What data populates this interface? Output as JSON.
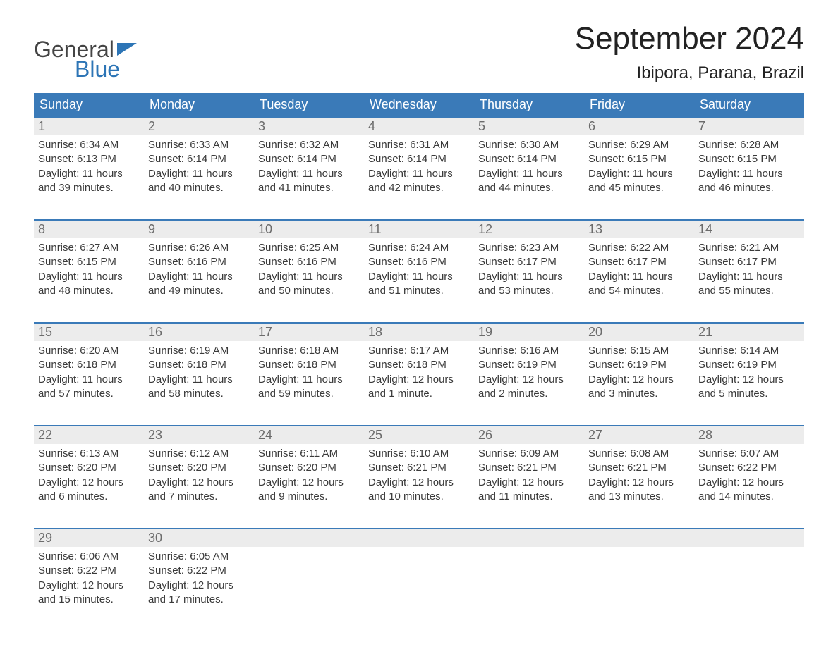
{
  "logo": {
    "line1": "General",
    "line2": "Blue"
  },
  "header": {
    "month_title": "September 2024",
    "location": "Ibipora, Parana, Brazil"
  },
  "colors": {
    "brand_blue": "#3a7ab8",
    "header_row_bg": "#3a7ab8",
    "header_row_text": "#ffffff",
    "dayrow_bg": "#ececec",
    "dayrow_border": "#3a7ab8",
    "daynum_text": "#6b6b6b",
    "body_text": "#3a3a3a",
    "page_bg": "#ffffff"
  },
  "fonts": {
    "month_title_pt": 44,
    "location_pt": 24,
    "weekday_pt": 18,
    "daynum_pt": 18,
    "cell_pt": 15,
    "logo_pt": 32
  },
  "weekdays": [
    "Sunday",
    "Monday",
    "Tuesday",
    "Wednesday",
    "Thursday",
    "Friday",
    "Saturday"
  ],
  "labels": {
    "sunrise": "Sunrise:",
    "sunset": "Sunset:",
    "daylight": "Daylight:"
  },
  "weeks": [
    [
      {
        "day": "1",
        "sunrise": "6:34 AM",
        "sunset": "6:13 PM",
        "daylight": "11 hours and 39 minutes."
      },
      {
        "day": "2",
        "sunrise": "6:33 AM",
        "sunset": "6:14 PM",
        "daylight": "11 hours and 40 minutes."
      },
      {
        "day": "3",
        "sunrise": "6:32 AM",
        "sunset": "6:14 PM",
        "daylight": "11 hours and 41 minutes."
      },
      {
        "day": "4",
        "sunrise": "6:31 AM",
        "sunset": "6:14 PM",
        "daylight": "11 hours and 42 minutes."
      },
      {
        "day": "5",
        "sunrise": "6:30 AM",
        "sunset": "6:14 PM",
        "daylight": "11 hours and 44 minutes."
      },
      {
        "day": "6",
        "sunrise": "6:29 AM",
        "sunset": "6:15 PM",
        "daylight": "11 hours and 45 minutes."
      },
      {
        "day": "7",
        "sunrise": "6:28 AM",
        "sunset": "6:15 PM",
        "daylight": "11 hours and 46 minutes."
      }
    ],
    [
      {
        "day": "8",
        "sunrise": "6:27 AM",
        "sunset": "6:15 PM",
        "daylight": "11 hours and 48 minutes."
      },
      {
        "day": "9",
        "sunrise": "6:26 AM",
        "sunset": "6:16 PM",
        "daylight": "11 hours and 49 minutes."
      },
      {
        "day": "10",
        "sunrise": "6:25 AM",
        "sunset": "6:16 PM",
        "daylight": "11 hours and 50 minutes."
      },
      {
        "day": "11",
        "sunrise": "6:24 AM",
        "sunset": "6:16 PM",
        "daylight": "11 hours and 51 minutes."
      },
      {
        "day": "12",
        "sunrise": "6:23 AM",
        "sunset": "6:17 PM",
        "daylight": "11 hours and 53 minutes."
      },
      {
        "day": "13",
        "sunrise": "6:22 AM",
        "sunset": "6:17 PM",
        "daylight": "11 hours and 54 minutes."
      },
      {
        "day": "14",
        "sunrise": "6:21 AM",
        "sunset": "6:17 PM",
        "daylight": "11 hours and 55 minutes."
      }
    ],
    [
      {
        "day": "15",
        "sunrise": "6:20 AM",
        "sunset": "6:18 PM",
        "daylight": "11 hours and 57 minutes."
      },
      {
        "day": "16",
        "sunrise": "6:19 AM",
        "sunset": "6:18 PM",
        "daylight": "11 hours and 58 minutes."
      },
      {
        "day": "17",
        "sunrise": "6:18 AM",
        "sunset": "6:18 PM",
        "daylight": "11 hours and 59 minutes."
      },
      {
        "day": "18",
        "sunrise": "6:17 AM",
        "sunset": "6:18 PM",
        "daylight": "12 hours and 1 minute."
      },
      {
        "day": "19",
        "sunrise": "6:16 AM",
        "sunset": "6:19 PM",
        "daylight": "12 hours and 2 minutes."
      },
      {
        "day": "20",
        "sunrise": "6:15 AM",
        "sunset": "6:19 PM",
        "daylight": "12 hours and 3 minutes."
      },
      {
        "day": "21",
        "sunrise": "6:14 AM",
        "sunset": "6:19 PM",
        "daylight": "12 hours and 5 minutes."
      }
    ],
    [
      {
        "day": "22",
        "sunrise": "6:13 AM",
        "sunset": "6:20 PM",
        "daylight": "12 hours and 6 minutes."
      },
      {
        "day": "23",
        "sunrise": "6:12 AM",
        "sunset": "6:20 PM",
        "daylight": "12 hours and 7 minutes."
      },
      {
        "day": "24",
        "sunrise": "6:11 AM",
        "sunset": "6:20 PM",
        "daylight": "12 hours and 9 minutes."
      },
      {
        "day": "25",
        "sunrise": "6:10 AM",
        "sunset": "6:21 PM",
        "daylight": "12 hours and 10 minutes."
      },
      {
        "day": "26",
        "sunrise": "6:09 AM",
        "sunset": "6:21 PM",
        "daylight": "12 hours and 11 minutes."
      },
      {
        "day": "27",
        "sunrise": "6:08 AM",
        "sunset": "6:21 PM",
        "daylight": "12 hours and 13 minutes."
      },
      {
        "day": "28",
        "sunrise": "6:07 AM",
        "sunset": "6:22 PM",
        "daylight": "12 hours and 14 minutes."
      }
    ],
    [
      {
        "day": "29",
        "sunrise": "6:06 AM",
        "sunset": "6:22 PM",
        "daylight": "12 hours and 15 minutes."
      },
      {
        "day": "30",
        "sunrise": "6:05 AM",
        "sunset": "6:22 PM",
        "daylight": "12 hours and 17 minutes."
      },
      null,
      null,
      null,
      null,
      null
    ]
  ]
}
